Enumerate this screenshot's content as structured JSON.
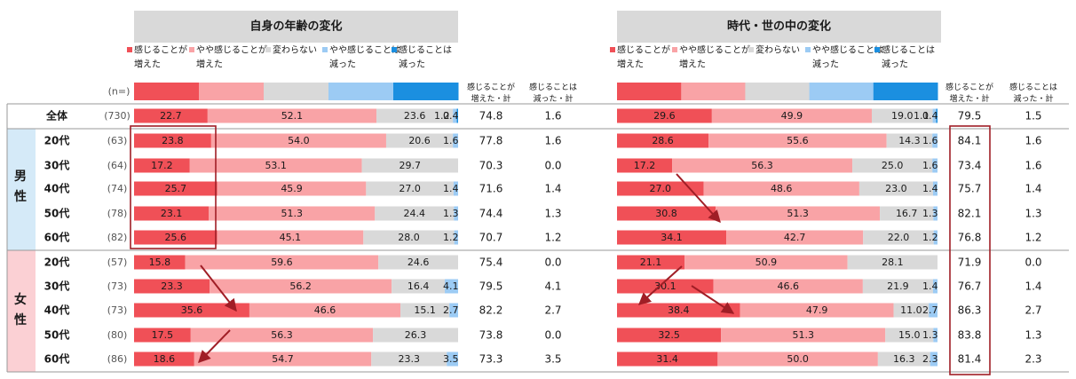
{
  "colors": {
    "c1": "#f05057",
    "c2": "#f9a3a6",
    "c3": "#d9d9d9",
    "c4": "#9ccbf4",
    "c5": "#1b8fe0",
    "gender_male_bg": "#d5eaf8",
    "gender_female_bg": "#fbd0d4",
    "panel_header_bg": "#d9d9d9",
    "highlight_box": "#a01e26",
    "arrow": "#a01e26"
  },
  "n_header": "(n=)",
  "gender_labels": {
    "male": [
      "男",
      "性"
    ],
    "female": [
      "女",
      "性"
    ]
  },
  "legend": [
    {
      "key": "c1",
      "lines": [
        "感じることが",
        "増えた"
      ]
    },
    {
      "key": "c2",
      "lines": [
        "やや感じることが",
        "増えた"
      ]
    },
    {
      "key": "c3",
      "lines": [
        "変わらない"
      ]
    },
    {
      "key": "c4",
      "lines": [
        "やや感じることは",
        "減った"
      ]
    },
    {
      "key": "c5",
      "lines": [
        "感じることは",
        "減った"
      ]
    }
  ],
  "sum_headers": {
    "increase": [
      "感じることが",
      "増えた・計"
    ],
    "decrease": [
      "感じることは",
      "減った・計"
    ]
  },
  "rows": [
    {
      "group": "total",
      "label": "全体",
      "n": "(730)"
    },
    {
      "group": "male",
      "label": "20代",
      "n": "(63)"
    },
    {
      "group": "male",
      "label": "30代",
      "n": "(64)"
    },
    {
      "group": "male",
      "label": "40代",
      "n": "(74)"
    },
    {
      "group": "male",
      "label": "50代",
      "n": "(78)"
    },
    {
      "group": "male",
      "label": "60代",
      "n": "(82)"
    },
    {
      "group": "female",
      "label": "20代",
      "n": "(57)"
    },
    {
      "group": "female",
      "label": "30代",
      "n": "(73)"
    },
    {
      "group": "female",
      "label": "40代",
      "n": "(73)"
    },
    {
      "group": "female",
      "label": "50代",
      "n": "(80)"
    },
    {
      "group": "female",
      "label": "60代",
      "n": "(86)"
    }
  ],
  "chart_data": [
    {
      "type": "bar",
      "stacked": "100%",
      "orientation": "horizontal",
      "title": "自身の年齢の変化",
      "xlim": [
        0,
        100
      ],
      "unit": "%",
      "categories": [
        "全体",
        "男性20代",
        "男性30代",
        "男性40代",
        "男性50代",
        "男性60代",
        "女性20代",
        "女性30代",
        "女性40代",
        "女性50代",
        "女性60代"
      ],
      "series": [
        {
          "name": "感じることが増えた",
          "values": [
            22.7,
            23.8,
            17.2,
            25.7,
            23.1,
            25.6,
            15.8,
            23.3,
            35.6,
            17.5,
            18.6
          ]
        },
        {
          "name": "やや感じることが増えた",
          "values": [
            52.1,
            54.0,
            53.1,
            45.9,
            51.3,
            45.1,
            59.6,
            56.2,
            46.6,
            56.3,
            54.7
          ]
        },
        {
          "name": "変わらない",
          "values": [
            23.6,
            20.6,
            29.7,
            27.0,
            24.4,
            28.0,
            24.6,
            16.4,
            15.1,
            26.3,
            23.3
          ]
        },
        {
          "name": "やや感じることは減った",
          "values": [
            1.2,
            1.6,
            0.0,
            1.4,
            1.3,
            1.2,
            0.0,
            4.1,
            2.7,
            0.0,
            3.5
          ]
        },
        {
          "name": "感じることは減った",
          "values": [
            0.4,
            0.0,
            0.0,
            0.0,
            0.0,
            0.0,
            0.0,
            0.0,
            0.0,
            0.0,
            0.0
          ]
        }
      ],
      "labels": [
        [
          "22.7",
          "52.1",
          "23.6",
          "1.2",
          "0.4"
        ],
        [
          "23.8",
          "54.0",
          "20.6",
          "1.6",
          ""
        ],
        [
          "17.2",
          "53.1",
          "29.7",
          "",
          ""
        ],
        [
          "25.7",
          "45.9",
          "27.0",
          "1.4",
          ""
        ],
        [
          "23.1",
          "51.3",
          "24.4",
          "1.3",
          ""
        ],
        [
          "25.6",
          "45.1",
          "28.0",
          "1.2",
          ""
        ],
        [
          "15.8",
          "59.6",
          "24.6",
          "",
          ""
        ],
        [
          "23.3",
          "56.2",
          "16.4",
          "4.1",
          ""
        ],
        [
          "35.6",
          "46.6",
          "15.1",
          "2.7",
          ""
        ],
        [
          "17.5",
          "56.3",
          "26.3",
          "",
          ""
        ],
        [
          "18.6",
          "54.7",
          "23.3",
          "3.5",
          ""
        ]
      ],
      "increase_total": [
        "74.8",
        "77.8",
        "70.3",
        "71.6",
        "74.4",
        "70.7",
        "75.4",
        "79.5",
        "82.2",
        "73.8",
        "73.3"
      ],
      "decrease_total": [
        "1.6",
        "1.6",
        "0.0",
        "1.4",
        "1.3",
        "1.2",
        "0.0",
        "4.1",
        "2.7",
        "0.0",
        "3.5"
      ]
    },
    {
      "type": "bar",
      "stacked": "100%",
      "orientation": "horizontal",
      "title": "時代・世の中の変化",
      "xlim": [
        0,
        100
      ],
      "unit": "%",
      "categories": [
        "全体",
        "男性20代",
        "男性30代",
        "男性40代",
        "男性50代",
        "男性60代",
        "女性20代",
        "女性30代",
        "女性40代",
        "女性50代",
        "女性60代"
      ],
      "series": [
        {
          "name": "感じることが増えた",
          "values": [
            29.6,
            28.6,
            17.2,
            27.0,
            30.8,
            34.1,
            21.1,
            30.1,
            38.4,
            32.5,
            31.4
          ]
        },
        {
          "name": "やや感じることが増えた",
          "values": [
            49.9,
            55.6,
            56.3,
            48.6,
            51.3,
            42.7,
            50.9,
            46.6,
            47.9,
            51.3,
            50.0
          ]
        },
        {
          "name": "変わらない",
          "values": [
            19.0,
            14.3,
            25.0,
            23.0,
            16.7,
            22.0,
            28.1,
            21.9,
            11.0,
            15.0,
            16.3
          ]
        },
        {
          "name": "やや感じることは減った",
          "values": [
            1.1,
            1.6,
            1.6,
            1.4,
            1.3,
            1.2,
            0.0,
            1.4,
            2.7,
            1.3,
            2.3
          ]
        },
        {
          "name": "感じることは減った",
          "values": [
            0.4,
            0.0,
            0.0,
            0.0,
            0.0,
            0.0,
            0.0,
            0.0,
            0.0,
            0.0,
            0.0
          ]
        }
      ],
      "labels": [
        [
          "29.6",
          "49.9",
          "19.0",
          "1.1",
          "0.4"
        ],
        [
          "28.6",
          "55.6",
          "14.3",
          "1.6",
          ""
        ],
        [
          "17.2",
          "56.3",
          "25.0",
          "1.6",
          ""
        ],
        [
          "27.0",
          "48.6",
          "23.0",
          "1.4",
          ""
        ],
        [
          "30.8",
          "51.3",
          "16.7",
          "1.3",
          ""
        ],
        [
          "34.1",
          "42.7",
          "22.0",
          "1.2",
          ""
        ],
        [
          "21.1",
          "50.9",
          "28.1",
          "",
          ""
        ],
        [
          "30.1",
          "46.6",
          "21.9",
          "1.4",
          ""
        ],
        [
          "38.4",
          "47.9",
          "11.0",
          "2.7",
          ""
        ],
        [
          "32.5",
          "51.3",
          "15.0",
          "1.3",
          ""
        ],
        [
          "31.4",
          "50.0",
          "16.3",
          "2.3",
          ""
        ]
      ],
      "increase_total": [
        "79.5",
        "84.1",
        "73.4",
        "75.7",
        "82.1",
        "76.8",
        "71.9",
        "76.7",
        "86.3",
        "83.8",
        "81.4"
      ],
      "decrease_total": [
        "1.5",
        "1.6",
        "1.6",
        "1.4",
        "1.3",
        "1.2",
        "0.0",
        "1.4",
        "2.7",
        "1.3",
        "2.3"
      ]
    }
  ]
}
